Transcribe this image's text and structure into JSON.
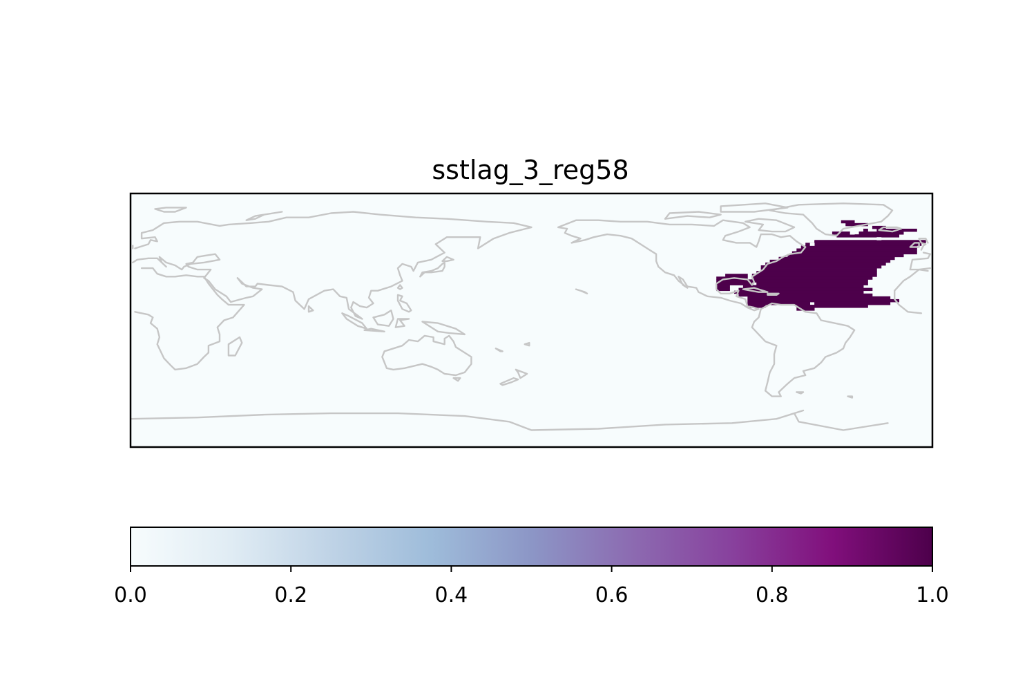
{
  "chart_data": {
    "type": "heatmap",
    "title": "sstlag_3_reg58",
    "map": {
      "projection": "PlateCarree",
      "central_longitude": 180,
      "extent": {
        "lon": [
          0,
          360
        ],
        "lat": [
          -90,
          90
        ]
      },
      "coastline_color": "#c6c6c6",
      "background_value": 0.0,
      "region_value": 1.0,
      "region_name": "reg58",
      "region_cell_size_deg": 2,
      "region_rows": [
        {
          "lat": [
            69,
            71
          ],
          "lon": [
            -41,
            -35
          ]
        },
        {
          "lat": [
            67,
            69
          ],
          "lon": [
            -39,
            -29
          ]
        },
        {
          "lat": [
            65,
            67
          ],
          "lon": [
            -27,
            -21
          ]
        },
        {
          "lat": [
            63,
            65
          ],
          "lon": [
            -31,
            -29
          ]
        },
        {
          "lat": [
            63,
            65
          ],
          "lon": [
            -25,
            -7
          ]
        },
        {
          "lat": [
            61,
            63
          ],
          "lon": [
            -45,
            -37
          ]
        },
        {
          "lat": [
            61,
            63
          ],
          "lon": [
            -33,
            -13
          ]
        },
        {
          "lat": [
            59,
            61
          ],
          "lon": [
            -43,
            -15
          ]
        },
        {
          "lat": [
            57,
            59
          ],
          "lon": [
            -49,
            5
          ]
        },
        {
          "lat": [
            55,
            57
          ],
          "lon": [
            -53,
            -3
          ]
        },
        {
          "lat": [
            53,
            55
          ],
          "lon": [
            -57,
            -5
          ]
        },
        {
          "lat": [
            51,
            53
          ],
          "lon": [
            -59,
            -7
          ]
        },
        {
          "lat": [
            49,
            51
          ],
          "lon": [
            -61,
            -7
          ]
        },
        {
          "lat": [
            47,
            49
          ],
          "lon": [
            -63,
            -7
          ]
        },
        {
          "lat": [
            45,
            47
          ],
          "lon": [
            -65,
            -13
          ]
        },
        {
          "lat": [
            43,
            45
          ],
          "lon": [
            -69,
            -17
          ]
        },
        {
          "lat": [
            41,
            43
          ],
          "lon": [
            -73,
            -19
          ]
        },
        {
          "lat": [
            39,
            41
          ],
          "lon": [
            -75,
            -21
          ]
        },
        {
          "lat": [
            37,
            39
          ],
          "lon": [
            -77,
            -23
          ]
        },
        {
          "lat": [
            35,
            37
          ],
          "lon": [
            -77,
            -25
          ]
        },
        {
          "lat": [
            33,
            35
          ],
          "lon": [
            -79,
            -25
          ]
        },
        {
          "lat": [
            31,
            33
          ],
          "lon": [
            -93,
            -83
          ]
        },
        {
          "lat": [
            31,
            33
          ],
          "lon": [
            -81,
            -25
          ]
        },
        {
          "lat": [
            29,
            31
          ],
          "lon": [
            -97,
            -83
          ]
        },
        {
          "lat": [
            29,
            31
          ],
          "lon": [
            -81,
            -27
          ]
        },
        {
          "lat": [
            27,
            29
          ],
          "lon": [
            -97,
            -29
          ]
        },
        {
          "lat": [
            25,
            27
          ],
          "lon": [
            -97,
            -81
          ]
        },
        {
          "lat": [
            25,
            27
          ],
          "lon": [
            -79,
            -29
          ]
        },
        {
          "lat": [
            23,
            25
          ],
          "lon": [
            -97,
            -91
          ]
        },
        {
          "lat": [
            23,
            25
          ],
          "lon": [
            -85,
            -31
          ]
        },
        {
          "lat": [
            21,
            23
          ],
          "lon": [
            -97,
            -91
          ]
        },
        {
          "lat": [
            21,
            23
          ],
          "lon": [
            -87,
            -27
          ]
        },
        {
          "lat": [
            19,
            21
          ],
          "lon": [
            -89,
            -31
          ]
        },
        {
          "lat": [
            17,
            19
          ],
          "lon": [
            -87,
            -27
          ]
        },
        {
          "lat": [
            15,
            17
          ],
          "lon": [
            -83,
            -19
          ]
        },
        {
          "lat": [
            13,
            15
          ],
          "lon": [
            -83,
            -15
          ]
        },
        {
          "lat": [
            11,
            13
          ],
          "lon": [
            -83,
            -55
          ]
        },
        {
          "lat": [
            11,
            13
          ],
          "lon": [
            -53,
            -19
          ]
        },
        {
          "lat": [
            9,
            11
          ],
          "lon": [
            -83,
            -75
          ]
        },
        {
          "lat": [
            9,
            11
          ],
          "lon": [
            -61,
            -29
          ]
        },
        {
          "lat": [
            7,
            9
          ],
          "lon": [
            -61,
            -53
          ]
        }
      ],
      "region_holes": [
        {
          "lat": [
            61,
            63
          ],
          "lon": [
            -55,
            -53
          ]
        },
        {
          "lat": [
            61,
            63
          ],
          "lon": [
            -37,
            -35
          ]
        },
        {
          "lat": [
            57,
            59
          ],
          "lon": [
            -55,
            -53
          ]
        },
        {
          "lat": [
            57,
            59
          ],
          "lon": [
            -25,
            -23
          ]
        },
        {
          "lat": [
            53,
            55
          ],
          "lon": [
            -55,
            -53
          ]
        }
      ]
    },
    "colorbar": {
      "colormap": "BuPu",
      "range": [
        0.0,
        1.0
      ],
      "orientation": "horizontal",
      "ticks": [
        "0.0",
        "0.2",
        "0.4",
        "0.6",
        "0.8",
        "1.0"
      ],
      "tick_values": [
        0.0,
        0.2,
        0.4,
        0.6,
        0.8,
        1.0
      ],
      "colors": [
        "#f7fcfd",
        "#e0ecf4",
        "#bfd3e6",
        "#9ebcda",
        "#8c96c6",
        "#8c6bb1",
        "#88419d",
        "#810f7c",
        "#4d004b"
      ]
    }
  }
}
